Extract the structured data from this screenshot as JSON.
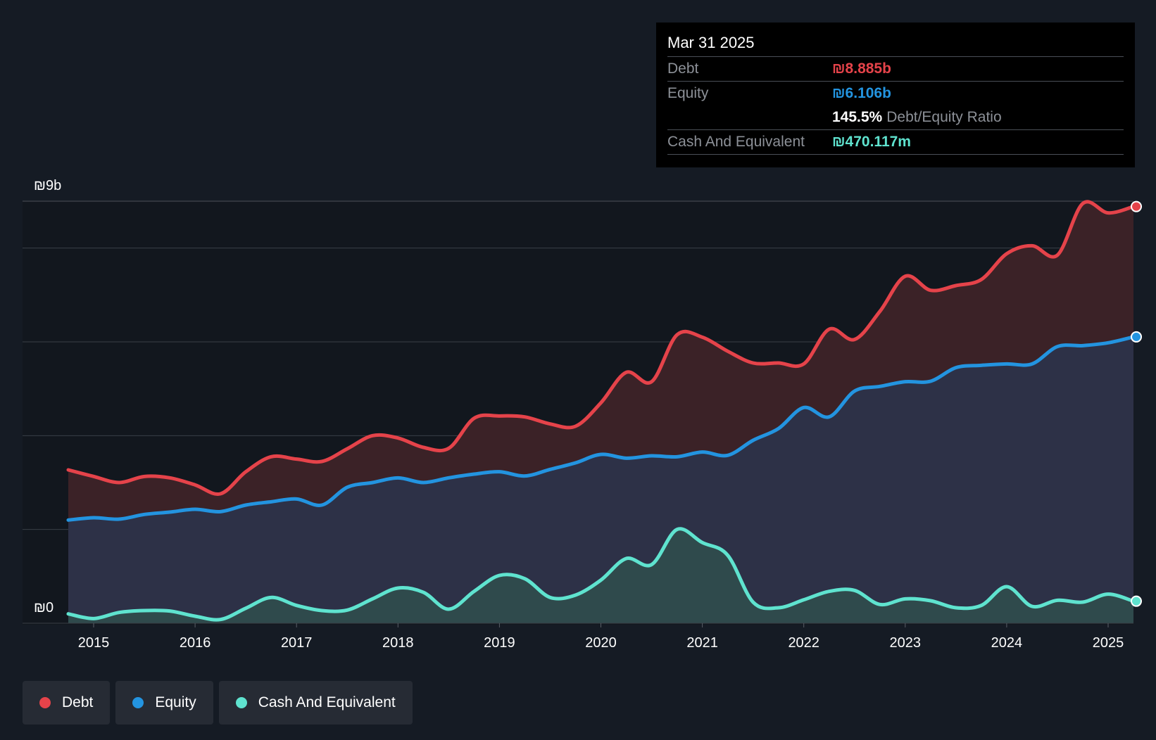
{
  "colors": {
    "debt": "#e5434a",
    "equity": "#2394e0",
    "cash": "#5fe3cf",
    "grid": "#3a3f47"
  },
  "tooltip": {
    "date": "Mar 31 2025",
    "debt_label": "Debt",
    "debt_value": "₪8.885b",
    "equity_label": "Equity",
    "equity_value": "₪6.106b",
    "ratio_value": "145.5%",
    "ratio_label": "Debt/Equity Ratio",
    "cash_label": "Cash And Equivalent",
    "cash_value": "₪470.117m"
  },
  "legend": {
    "debt": "Debt",
    "equity": "Equity",
    "cash": "Cash And Equivalent"
  },
  "chart_data": {
    "type": "area",
    "title": "",
    "xlabel": "",
    "ylabel": "",
    "y_axis_labels": {
      "top": "₪9b",
      "bottom": "₪0"
    },
    "ylim": [
      0,
      9
    ],
    "xlim": [
      2014.72,
      2025.25
    ],
    "x_ticks": [
      "2015",
      "2016",
      "2017",
      "2018",
      "2019",
      "2020",
      "2021",
      "2022",
      "2023",
      "2024",
      "2025"
    ],
    "series": [
      {
        "name": "Debt",
        "key": "debt",
        "points": [
          [
            2014.75,
            3.27
          ],
          [
            2015.0,
            3.13
          ],
          [
            2015.25,
            3.0
          ],
          [
            2015.5,
            3.13
          ],
          [
            2015.75,
            3.1
          ],
          [
            2016.0,
            2.95
          ],
          [
            2016.25,
            2.76
          ],
          [
            2016.5,
            3.23
          ],
          [
            2016.75,
            3.55
          ],
          [
            2017.0,
            3.5
          ],
          [
            2017.25,
            3.45
          ],
          [
            2017.5,
            3.72
          ],
          [
            2017.75,
            4.0
          ],
          [
            2018.0,
            3.95
          ],
          [
            2018.25,
            3.75
          ],
          [
            2018.5,
            3.73
          ],
          [
            2018.75,
            4.37
          ],
          [
            2019.0,
            4.42
          ],
          [
            2019.25,
            4.4
          ],
          [
            2019.5,
            4.25
          ],
          [
            2019.75,
            4.2
          ],
          [
            2020.0,
            4.7
          ],
          [
            2020.25,
            5.35
          ],
          [
            2020.5,
            5.15
          ],
          [
            2020.75,
            6.15
          ],
          [
            2021.0,
            6.1
          ],
          [
            2021.25,
            5.8
          ],
          [
            2021.5,
            5.55
          ],
          [
            2021.75,
            5.55
          ],
          [
            2022.0,
            5.53
          ],
          [
            2022.25,
            6.27
          ],
          [
            2022.5,
            6.05
          ],
          [
            2022.75,
            6.65
          ],
          [
            2023.0,
            7.4
          ],
          [
            2023.25,
            7.1
          ],
          [
            2023.5,
            7.2
          ],
          [
            2023.75,
            7.33
          ],
          [
            2024.0,
            7.88
          ],
          [
            2024.25,
            8.05
          ],
          [
            2024.5,
            7.85
          ],
          [
            2024.75,
            8.95
          ],
          [
            2025.0,
            8.75
          ],
          [
            2025.25,
            8.885
          ]
        ]
      },
      {
        "name": "Equity",
        "key": "equity",
        "points": [
          [
            2014.75,
            2.2
          ],
          [
            2015.0,
            2.25
          ],
          [
            2015.25,
            2.22
          ],
          [
            2015.5,
            2.32
          ],
          [
            2015.75,
            2.37
          ],
          [
            2016.0,
            2.43
          ],
          [
            2016.25,
            2.38
          ],
          [
            2016.5,
            2.52
          ],
          [
            2016.75,
            2.59
          ],
          [
            2017.0,
            2.65
          ],
          [
            2017.25,
            2.52
          ],
          [
            2017.5,
            2.9
          ],
          [
            2017.75,
            3.0
          ],
          [
            2018.0,
            3.1
          ],
          [
            2018.25,
            3.0
          ],
          [
            2018.5,
            3.1
          ],
          [
            2018.75,
            3.18
          ],
          [
            2019.0,
            3.23
          ],
          [
            2019.25,
            3.14
          ],
          [
            2019.5,
            3.28
          ],
          [
            2019.75,
            3.42
          ],
          [
            2020.0,
            3.6
          ],
          [
            2020.25,
            3.52
          ],
          [
            2020.5,
            3.57
          ],
          [
            2020.75,
            3.55
          ],
          [
            2021.0,
            3.65
          ],
          [
            2021.25,
            3.58
          ],
          [
            2021.5,
            3.9
          ],
          [
            2021.75,
            4.15
          ],
          [
            2022.0,
            4.6
          ],
          [
            2022.25,
            4.4
          ],
          [
            2022.5,
            4.95
          ],
          [
            2022.75,
            5.05
          ],
          [
            2023.0,
            5.15
          ],
          [
            2023.25,
            5.16
          ],
          [
            2023.5,
            5.45
          ],
          [
            2023.75,
            5.5
          ],
          [
            2024.0,
            5.53
          ],
          [
            2024.25,
            5.53
          ],
          [
            2024.5,
            5.9
          ],
          [
            2024.75,
            5.92
          ],
          [
            2025.0,
            5.98
          ],
          [
            2025.25,
            6.106
          ]
        ]
      },
      {
        "name": "Cash And Equivalent",
        "key": "cash",
        "points": [
          [
            2014.75,
            0.2
          ],
          [
            2015.0,
            0.1
          ],
          [
            2015.25,
            0.23
          ],
          [
            2015.5,
            0.27
          ],
          [
            2015.75,
            0.26
          ],
          [
            2016.0,
            0.15
          ],
          [
            2016.25,
            0.08
          ],
          [
            2016.5,
            0.32
          ],
          [
            2016.75,
            0.55
          ],
          [
            2017.0,
            0.38
          ],
          [
            2017.25,
            0.27
          ],
          [
            2017.5,
            0.28
          ],
          [
            2017.75,
            0.52
          ],
          [
            2018.0,
            0.75
          ],
          [
            2018.25,
            0.66
          ],
          [
            2018.5,
            0.3
          ],
          [
            2018.75,
            0.68
          ],
          [
            2019.0,
            1.02
          ],
          [
            2019.25,
            0.95
          ],
          [
            2019.5,
            0.55
          ],
          [
            2019.75,
            0.6
          ],
          [
            2020.0,
            0.92
          ],
          [
            2020.25,
            1.38
          ],
          [
            2020.5,
            1.25
          ],
          [
            2020.75,
            2.0
          ],
          [
            2021.0,
            1.72
          ],
          [
            2021.25,
            1.45
          ],
          [
            2021.5,
            0.45
          ],
          [
            2021.75,
            0.33
          ],
          [
            2022.0,
            0.5
          ],
          [
            2022.25,
            0.68
          ],
          [
            2022.5,
            0.7
          ],
          [
            2022.75,
            0.4
          ],
          [
            2023.0,
            0.52
          ],
          [
            2023.25,
            0.48
          ],
          [
            2023.5,
            0.33
          ],
          [
            2023.75,
            0.38
          ],
          [
            2024.0,
            0.78
          ],
          [
            2024.25,
            0.36
          ],
          [
            2024.5,
            0.49
          ],
          [
            2024.75,
            0.45
          ],
          [
            2025.0,
            0.62
          ],
          [
            2025.25,
            0.47
          ]
        ]
      }
    ]
  }
}
